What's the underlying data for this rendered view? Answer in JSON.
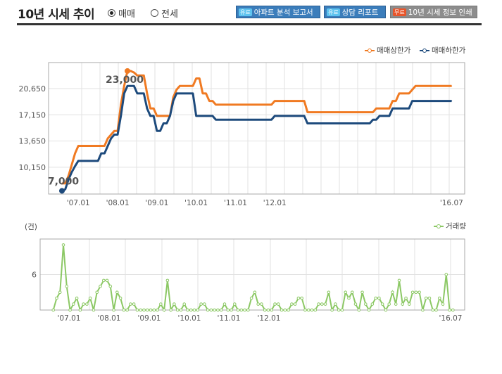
{
  "header": {
    "title": "10년 시세 추이",
    "radio_options": [
      {
        "label": "매매",
        "selected": true
      },
      {
        "label": "전세",
        "selected": false
      }
    ],
    "buttons": [
      {
        "badge": "유료",
        "label": "아파트 분석 보고서"
      },
      {
        "badge": "유료",
        "label": "상담 리포트"
      },
      {
        "badge": "무료",
        "label": "10년 시세 정보 인쇄"
      }
    ]
  },
  "colors": {
    "upper": "#f07a22",
    "lower": "#1d4a7c",
    "volume": "#8cc865"
  },
  "chart_data": [
    {
      "type": "line",
      "legend_position": "top-right",
      "grid": true,
      "x_tick_labels": [
        "'07.01",
        "'08.01",
        "'09.01",
        "'10.01",
        "'11.01",
        "'12.01",
        "'16.07"
      ],
      "x_start": "06.08",
      "x_end": "16.07",
      "x_interval": "month",
      "y_ticks": [
        10150,
        13650,
        17150,
        20650
      ],
      "y_tick_labels": [
        "10,150",
        "13,650",
        "17,150",
        "20,650"
      ],
      "annotations": [
        {
          "label": "23,000",
          "series": "매매상한가",
          "value": 23000
        },
        {
          "label": "7,000",
          "series": "매매하한가",
          "value": 7000
        }
      ],
      "series": [
        {
          "name": "매매상한가",
          "values": [
            8000,
            8000,
            9000,
            10500,
            12000,
            13000,
            13000,
            13000,
            13000,
            13000,
            13000,
            13000,
            13000,
            13000,
            14000,
            14500,
            15000,
            15000,
            18500,
            21000,
            23000,
            23000,
            22800,
            22400,
            22400,
            22400,
            20000,
            18000,
            18000,
            17000,
            17000,
            17000,
            17000,
            17000,
            19500,
            20500,
            21000,
            21000,
            21000,
            21000,
            21000,
            22000,
            22000,
            20000,
            20000,
            19000,
            19000,
            18500,
            18500,
            18500,
            18500,
            18500,
            18500,
            18500,
            18500,
            18500,
            18500,
            18500,
            18500,
            18500,
            18500,
            18500,
            18500,
            18500,
            18500,
            19000,
            19000,
            19000,
            19000,
            19000,
            19000,
            19000,
            19000,
            19000,
            19000,
            17500,
            17500,
            17500,
            17500,
            17500,
            17500,
            17500,
            17500,
            17500,
            17500,
            17500,
            17500,
            17500,
            17500,
            17500,
            17500,
            17500,
            17500,
            17500,
            17500,
            17500,
            18000,
            18000,
            18000,
            18000,
            18000,
            19000,
            19000,
            20000,
            20000,
            20000,
            20000,
            20500,
            21000,
            21000,
            21000,
            21000,
            21000,
            21000,
            21000,
            21000,
            21000,
            21000,
            21000,
            21000
          ]
        },
        {
          "name": "매매하한가",
          "values": [
            7000,
            7200,
            8500,
            9500,
            10300,
            11000,
            11000,
            11000,
            11000,
            11000,
            11000,
            11000,
            12000,
            12000,
            13000,
            14000,
            14500,
            14500,
            17000,
            20000,
            21000,
            21000,
            21000,
            20000,
            20000,
            20000,
            18000,
            17000,
            17000,
            15000,
            15000,
            16000,
            16000,
            17000,
            19000,
            20000,
            20000,
            20000,
            20000,
            20000,
            20000,
            17000,
            17000,
            17000,
            17000,
            17000,
            17000,
            16500,
            16500,
            16500,
            16500,
            16500,
            16500,
            16500,
            16500,
            16500,
            16500,
            16500,
            16500,
            16500,
            16500,
            16500,
            16500,
            16500,
            16500,
            17000,
            17000,
            17000,
            17000,
            17000,
            17000,
            17000,
            17000,
            17000,
            17000,
            16000,
            16000,
            16000,
            16000,
            16000,
            16000,
            16000,
            16000,
            16000,
            16000,
            16000,
            16000,
            16000,
            16000,
            16000,
            16000,
            16000,
            16000,
            16000,
            16000,
            16500,
            16500,
            17000,
            17000,
            17000,
            17000,
            18000,
            18000,
            18000,
            18000,
            18000,
            18000,
            19000,
            19000,
            19000,
            19000,
            19000,
            19000,
            19000,
            19000,
            19000,
            19000,
            19000,
            19000,
            19000
          ]
        }
      ]
    },
    {
      "type": "line",
      "unit_label": "(건)",
      "legend_position": "top-right",
      "grid": true,
      "x_tick_labels": [
        "'07.01",
        "'08.01",
        "'09.01",
        "'10.01",
        "'11.01",
        "'12.01",
        "'16.07"
      ],
      "y_ticks": [
        6
      ],
      "y_tick_labels": [
        "6"
      ],
      "series": [
        {
          "name": "거래량",
          "values": [
            0,
            2,
            3,
            11,
            4,
            0,
            1,
            2,
            0,
            1,
            1,
            2,
            0,
            3,
            4,
            5,
            5,
            4,
            0,
            3,
            2,
            0,
            0,
            1,
            1,
            0,
            0,
            0,
            0,
            0,
            0,
            0,
            1,
            0,
            5,
            0,
            1,
            0,
            0,
            1,
            0,
            0,
            0,
            0,
            1,
            1,
            0,
            0,
            0,
            0,
            0,
            1,
            0,
            0,
            1,
            0,
            0,
            0,
            0,
            2,
            3,
            1,
            1,
            0,
            0,
            0,
            1,
            1,
            0,
            0,
            0,
            1,
            1,
            2,
            2,
            0,
            0,
            0,
            0,
            1,
            1,
            1,
            3,
            0,
            1,
            0,
            0,
            3,
            2,
            3,
            1,
            0,
            3,
            1,
            0,
            1,
            2,
            2,
            1,
            0,
            1,
            3,
            1,
            5,
            1,
            2,
            1,
            3,
            3,
            3,
            0,
            2,
            2,
            0,
            0,
            2,
            1,
            6,
            0,
            0
          ]
        }
      ]
    }
  ]
}
